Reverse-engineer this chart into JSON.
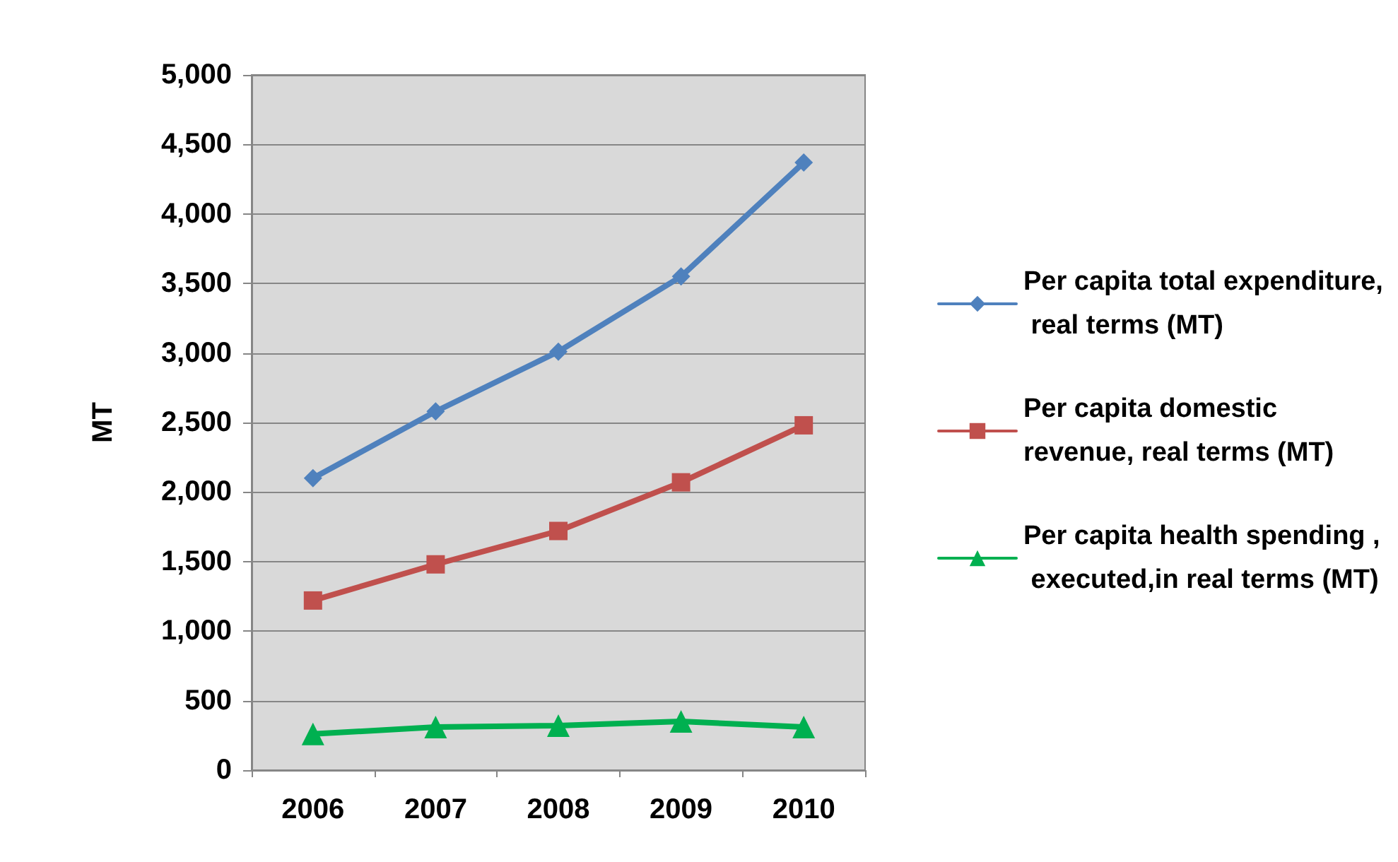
{
  "chart_data": {
    "type": "line",
    "ylabel": "MT",
    "categories": [
      "2006",
      "2007",
      "2008",
      "2009",
      "2010"
    ],
    "series": [
      {
        "name": "Per capita total expenditure, real terms (MT)",
        "color": "#4f81bd",
        "marker": "diamond",
        "values": [
          2100,
          2580,
          3010,
          3550,
          4370
        ]
      },
      {
        "name": "Per capita domestic revenue, real terms (MT)",
        "color": "#c0504d",
        "marker": "square",
        "values": [
          1220,
          1480,
          1720,
          2070,
          2480
        ]
      },
      {
        "name": "Per capita health spending , executed,in real terms (MT)",
        "color": "#00b050",
        "marker": "triangle",
        "values": [
          260,
          310,
          320,
          350,
          310
        ]
      }
    ],
    "ylim": [
      0,
      5000
    ],
    "yticks": [
      0,
      500,
      {
        "value": 1000,
        "label": "1,000"
      },
      {
        "value": 1500,
        "label": "1,500"
      },
      {
        "value": 2000,
        "label": "2,000"
      },
      {
        "value": 2500,
        "label": "2,500"
      },
      {
        "value": 3000,
        "label": "3,000"
      },
      {
        "value": 3500,
        "label": "3,500"
      },
      {
        "value": 4000,
        "label": "4,000"
      },
      {
        "value": 4500,
        "label": "4,500"
      },
      {
        "value": 5000,
        "label": "5,000"
      }
    ],
    "grid": "y",
    "legend": "right",
    "line_style": "solid"
  }
}
